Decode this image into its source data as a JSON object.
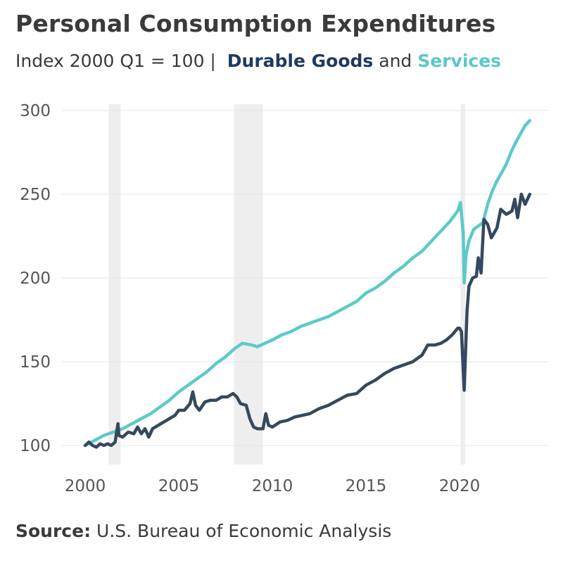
{
  "title": "Personal Consumption Expenditures",
  "subtitle": {
    "prefix": "Index 2000 Q1 = 100 |",
    "series1": "Durable Goods",
    "connector": "and",
    "series2": "Services"
  },
  "source": {
    "label": "Source:",
    "text": "U.S. Bureau of Economic Analysis"
  },
  "colors": {
    "durable": "#34495e",
    "services": "#5ccac8",
    "recession": "#eeeeee",
    "grid": "#e6e6e6"
  },
  "chart_data": {
    "type": "line",
    "title": "Personal Consumption Expenditures",
    "subtitle": "Index 2000 Q1 = 100 | Durable Goods and Services",
    "xlabel": "",
    "ylabel": "",
    "xlim": [
      2000,
      2024.2
    ],
    "ylim": [
      90,
      305
    ],
    "xticks": [
      2000,
      2005,
      2010,
      2015,
      2020
    ],
    "yticks": [
      100,
      150,
      200,
      250,
      300
    ],
    "grid": true,
    "legend": "in subtitle",
    "recessions": [
      [
        2001.25,
        2001.9
      ],
      [
        2007.95,
        2009.5
      ],
      [
        2020.05,
        2020.3
      ]
    ],
    "series": [
      {
        "name": "Durable Goods",
        "color": "#34495e",
        "points": [
          [
            2000.0,
            100
          ],
          [
            2000.2,
            102
          ],
          [
            2000.4,
            100
          ],
          [
            2000.6,
            99
          ],
          [
            2000.8,
            101
          ],
          [
            2001.0,
            100
          ],
          [
            2001.2,
            101
          ],
          [
            2001.4,
            100
          ],
          [
            2001.6,
            102
          ],
          [
            2001.75,
            113
          ],
          [
            2001.8,
            106
          ],
          [
            2002.0,
            105
          ],
          [
            2002.3,
            108
          ],
          [
            2002.6,
            107
          ],
          [
            2002.8,
            111
          ],
          [
            2003.0,
            107
          ],
          [
            2003.2,
            110
          ],
          [
            2003.4,
            105
          ],
          [
            2003.6,
            110
          ],
          [
            2003.9,
            112
          ],
          [
            2004.2,
            114
          ],
          [
            2004.5,
            116
          ],
          [
            2004.8,
            118
          ],
          [
            2005.0,
            121
          ],
          [
            2005.3,
            121
          ],
          [
            2005.6,
            125
          ],
          [
            2005.75,
            132
          ],
          [
            2005.9,
            124
          ],
          [
            2006.1,
            121
          ],
          [
            2006.4,
            126
          ],
          [
            2006.7,
            127
          ],
          [
            2007.0,
            127
          ],
          [
            2007.3,
            129
          ],
          [
            2007.6,
            129
          ],
          [
            2007.9,
            131
          ],
          [
            2008.1,
            129
          ],
          [
            2008.3,
            125
          ],
          [
            2008.6,
            124
          ],
          [
            2008.8,
            116
          ],
          [
            2009.0,
            111
          ],
          [
            2009.2,
            110
          ],
          [
            2009.5,
            110
          ],
          [
            2009.65,
            119
          ],
          [
            2009.8,
            112
          ],
          [
            2010.0,
            111
          ],
          [
            2010.4,
            114
          ],
          [
            2010.8,
            115
          ],
          [
            2011.2,
            117
          ],
          [
            2011.6,
            118
          ],
          [
            2012.0,
            119
          ],
          [
            2012.5,
            122
          ],
          [
            2013.0,
            124
          ],
          [
            2013.5,
            127
          ],
          [
            2014.0,
            130
          ],
          [
            2014.5,
            131
          ],
          [
            2015.0,
            136
          ],
          [
            2015.5,
            139
          ],
          [
            2016.0,
            143
          ],
          [
            2016.5,
            146
          ],
          [
            2017.0,
            148
          ],
          [
            2017.5,
            150
          ],
          [
            2018.0,
            154
          ],
          [
            2018.3,
            160
          ],
          [
            2018.7,
            160
          ],
          [
            2019.0,
            161
          ],
          [
            2019.3,
            163
          ],
          [
            2019.6,
            166
          ],
          [
            2019.9,
            170
          ],
          [
            2020.0,
            170
          ],
          [
            2020.1,
            168
          ],
          [
            2020.25,
            133
          ],
          [
            2020.4,
            180
          ],
          [
            2020.5,
            195
          ],
          [
            2020.7,
            200
          ],
          [
            2020.9,
            201
          ],
          [
            2021.0,
            212
          ],
          [
            2021.15,
            203
          ],
          [
            2021.3,
            235
          ],
          [
            2021.5,
            232
          ],
          [
            2021.7,
            224
          ],
          [
            2022.0,
            230
          ],
          [
            2022.2,
            241
          ],
          [
            2022.5,
            238
          ],
          [
            2022.8,
            240
          ],
          [
            2022.95,
            247
          ],
          [
            2023.1,
            236
          ],
          [
            2023.3,
            250
          ],
          [
            2023.5,
            244
          ],
          [
            2023.75,
            250
          ]
        ]
      },
      {
        "name": "Services",
        "color": "#5ccac8",
        "points": [
          [
            2000.0,
            100
          ],
          [
            2000.5,
            103
          ],
          [
            2001.0,
            106
          ],
          [
            2001.5,
            108
          ],
          [
            2002.0,
            110
          ],
          [
            2002.5,
            113
          ],
          [
            2003.0,
            116
          ],
          [
            2003.5,
            119
          ],
          [
            2004.0,
            123
          ],
          [
            2004.5,
            127
          ],
          [
            2005.0,
            132
          ],
          [
            2005.5,
            136
          ],
          [
            2006.0,
            140
          ],
          [
            2006.5,
            144
          ],
          [
            2007.0,
            149
          ],
          [
            2007.5,
            153
          ],
          [
            2008.0,
            158
          ],
          [
            2008.4,
            161
          ],
          [
            2008.9,
            160
          ],
          [
            2009.2,
            159
          ],
          [
            2009.6,
            161
          ],
          [
            2010.0,
            163
          ],
          [
            2010.5,
            166
          ],
          [
            2011.0,
            168
          ],
          [
            2011.5,
            171
          ],
          [
            2012.0,
            173
          ],
          [
            2012.5,
            175
          ],
          [
            2013.0,
            177
          ],
          [
            2013.5,
            180
          ],
          [
            2014.0,
            183
          ],
          [
            2014.5,
            186
          ],
          [
            2015.0,
            191
          ],
          [
            2015.5,
            194
          ],
          [
            2016.0,
            198
          ],
          [
            2016.5,
            203
          ],
          [
            2017.0,
            207
          ],
          [
            2017.5,
            212
          ],
          [
            2018.0,
            216
          ],
          [
            2018.5,
            222
          ],
          [
            2019.0,
            228
          ],
          [
            2019.5,
            234
          ],
          [
            2019.9,
            240
          ],
          [
            2020.05,
            245
          ],
          [
            2020.2,
            226
          ],
          [
            2020.25,
            197
          ],
          [
            2020.35,
            214
          ],
          [
            2020.5,
            222
          ],
          [
            2020.75,
            229
          ],
          [
            2021.0,
            231
          ],
          [
            2021.25,
            233
          ],
          [
            2021.5,
            244
          ],
          [
            2021.75,
            252
          ],
          [
            2022.0,
            258
          ],
          [
            2022.25,
            263
          ],
          [
            2022.5,
            268
          ],
          [
            2022.75,
            275
          ],
          [
            2023.0,
            281
          ],
          [
            2023.25,
            286
          ],
          [
            2023.5,
            291
          ],
          [
            2023.75,
            294
          ]
        ]
      }
    ]
  }
}
